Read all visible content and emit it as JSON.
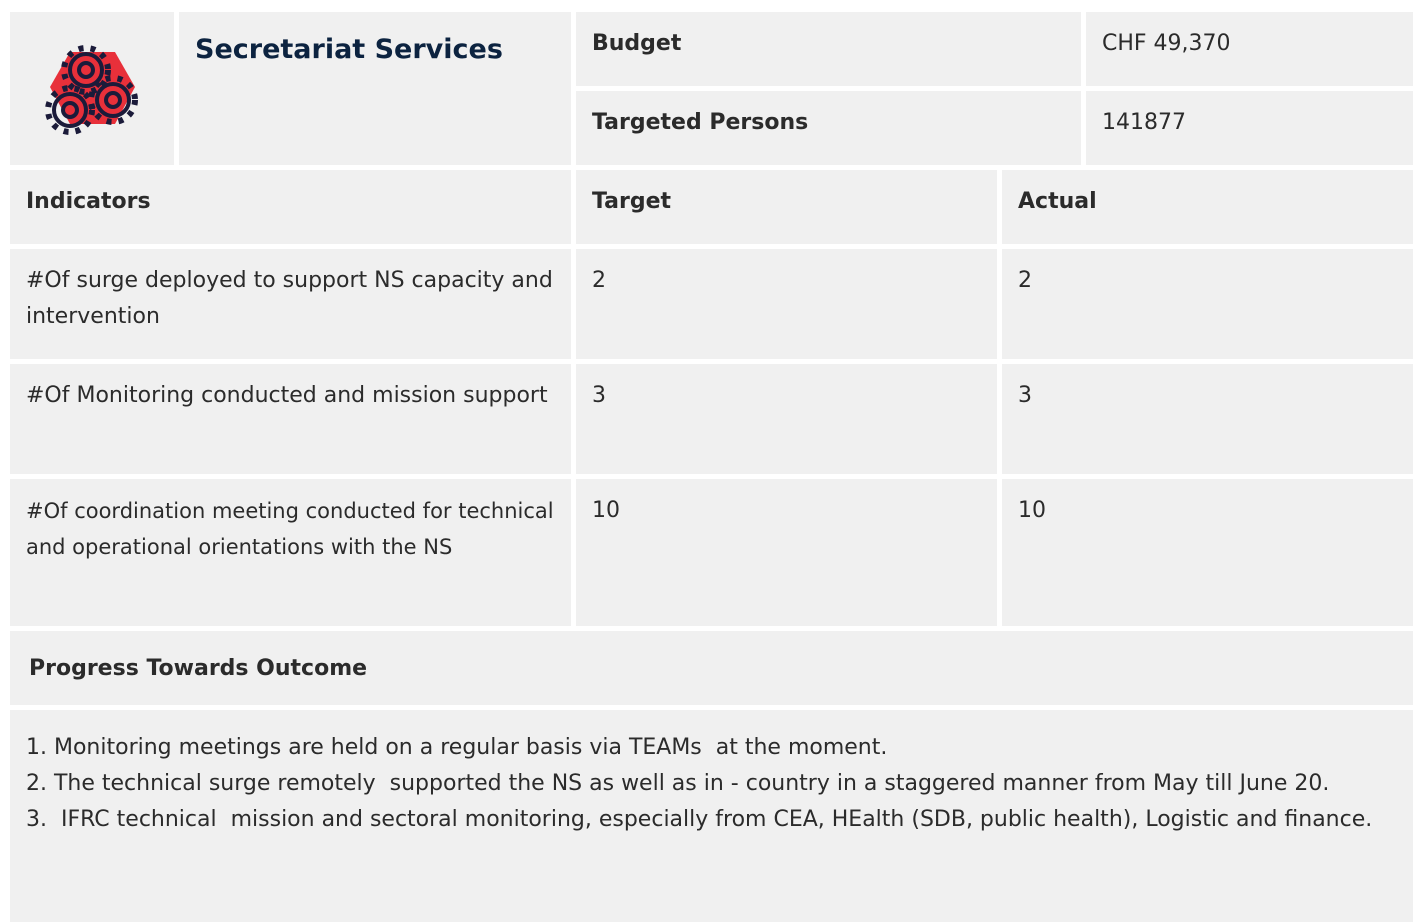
{
  "header": {
    "title": "Secretariat Services",
    "budget_label": "Budget",
    "budget_value": "CHF 49,370",
    "targeted_label": "Targeted Persons",
    "targeted_value": "141877"
  },
  "table": {
    "columns": [
      "Indicators",
      "Target",
      "Actual"
    ],
    "rows": [
      [
        "#Of surge deployed to support NS capacity and intervention",
        "2",
        "2"
      ],
      [
        "#Of Monitoring conducted and mission support",
        "3",
        "3"
      ],
      [
        "#Of coordination meeting conducted for technical and operational orientations with the NS",
        "10",
        "10"
      ]
    ]
  },
  "progress": {
    "title": "Progress Towards Outcome",
    "items": [
      "1. Monitoring meetings are held on a regular basis via TEAMs  at the moment.",
      "2. The technical surge remotely  supported the NS as well as in - country in a staggered manner from May till June 20.",
      "3.  IFRC technical  mission and sectoral monitoring, especially from CEA, HEalth (SDB, public health), Logistic and finance."
    ]
  }
}
